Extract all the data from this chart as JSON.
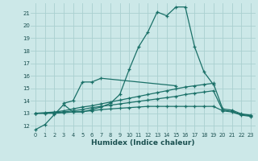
{
  "xlabel": "Humidex (Indice chaleur)",
  "bg_color": "#cce8e8",
  "grid_color": "#aad0d0",
  "line_color": "#1a7068",
  "xlim": [
    -0.5,
    23.5
  ],
  "ylim": [
    11.5,
    21.8
  ],
  "xticks": [
    0,
    1,
    2,
    3,
    4,
    5,
    6,
    7,
    8,
    9,
    10,
    11,
    12,
    13,
    14,
    15,
    16,
    17,
    18,
    19,
    20,
    21,
    22,
    23
  ],
  "yticks": [
    12,
    13,
    14,
    15,
    16,
    17,
    18,
    19,
    20,
    21
  ],
  "line1_y": [
    11.7,
    12.1,
    12.9,
    13.7,
    13.1,
    13.1,
    13.3,
    13.5,
    13.8,
    14.5,
    16.5,
    18.3,
    19.5,
    21.1,
    20.8,
    21.5,
    21.5,
    18.3,
    16.3,
    15.3,
    null,
    null,
    null,
    null
  ],
  "line2_y": [
    null,
    null,
    null,
    13.8,
    14.0,
    15.5,
    15.5,
    15.8,
    null,
    null,
    null,
    null,
    null,
    null,
    null,
    15.2,
    null,
    null,
    null,
    null,
    null,
    null,
    null,
    null
  ],
  "line3_y": [
    13.0,
    13.05,
    13.1,
    13.2,
    13.35,
    13.5,
    13.6,
    13.75,
    13.9,
    14.05,
    14.2,
    14.35,
    14.5,
    14.65,
    14.8,
    14.95,
    15.1,
    15.2,
    15.3,
    15.4,
    13.35,
    13.25,
    12.95,
    12.85
  ],
  "line4_y": [
    13.0,
    13.0,
    13.05,
    13.1,
    13.2,
    13.3,
    13.45,
    13.55,
    13.65,
    13.75,
    13.85,
    13.95,
    14.05,
    14.15,
    14.25,
    14.35,
    14.5,
    14.6,
    14.7,
    14.8,
    13.25,
    13.15,
    12.9,
    12.8
  ],
  "line5_y": [
    13.0,
    13.0,
    13.0,
    13.05,
    13.1,
    13.15,
    13.2,
    13.3,
    13.35,
    13.4,
    13.45,
    13.5,
    13.55,
    13.55,
    13.55,
    13.55,
    13.55,
    13.55,
    13.55,
    13.55,
    13.2,
    13.1,
    12.85,
    12.75
  ]
}
